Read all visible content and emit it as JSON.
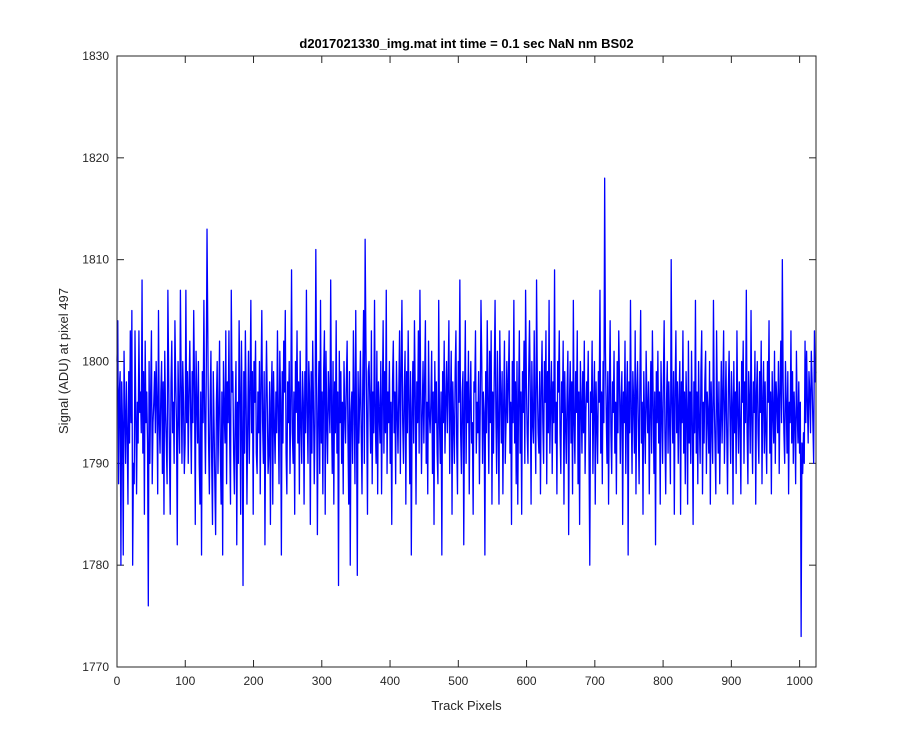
{
  "chart_data": {
    "type": "line",
    "title": "d2017021330_img.mat int time = 0.1 sec  NaN nm BS02",
    "xlabel": "Track Pixels",
    "ylabel": "Signal (ADU) at pixel 497",
    "xlim": [
      0,
      1024
    ],
    "ylim": [
      1770,
      1830
    ],
    "xticks": [
      0,
      100,
      200,
      300,
      400,
      500,
      600,
      700,
      800,
      900,
      1000
    ],
    "yticks": [
      1770,
      1780,
      1790,
      1800,
      1810,
      1820,
      1830
    ],
    "grid": false,
    "legend": "none",
    "series": [
      {
        "color": "#0000ff",
        "values": [
          1800,
          1804,
          1788,
          1797,
          1799,
          1780,
          1798,
          1794,
          1781,
          1801,
          1795,
          1790,
          1798,
          1793,
          1786,
          1799,
          1792,
          1803,
          1794,
          1805,
          1780,
          1790,
          1788,
          1803,
          1795,
          1787,
          1796,
          1792,
          1803,
          1795,
          1797,
          1793,
          1808,
          1791,
          1799,
          1785,
          1802,
          1794,
          1797,
          1792,
          1776,
          1800,
          1790,
          1797,
          1803,
          1788,
          1794,
          1796,
          1799,
          1793,
          1800,
          1796,
          1787,
          1805,
          1794,
          1791,
          1797,
          1800,
          1789,
          1798,
          1785,
          1801,
          1795,
          1792,
          1788,
          1807,
          1799,
          1791,
          1785,
          1798,
          1802,
          1793,
          1796,
          1790,
          1804,
          1798,
          1794,
          1782,
          1800,
          1795,
          1791,
          1807,
          1798,
          1790,
          1800,
          1796,
          1789,
          1792,
          1807,
          1794,
          1799,
          1790,
          1797,
          1802,
          1795,
          1789,
          1799,
          1794,
          1805,
          1798,
          1784,
          1801,
          1796,
          1792,
          1800,
          1790,
          1786,
          1797,
          1781,
          1799,
          1794,
          1806,
          1795,
          1789,
          1798,
          1813,
          1803,
          1792,
          1787,
          1796,
          1801,
          1790,
          1784,
          1799,
          1794,
          1788,
          1783,
          1796,
          1800,
          1789,
          1795,
          1802,
          1791,
          1786,
          1797,
          1781,
          1800,
          1795,
          1792,
          1803,
          1788,
          1798,
          1794,
          1803,
          1792,
          1786,
          1807,
          1797,
          1799,
          1791,
          1787,
          1795,
          1800,
          1782,
          1796,
          1790,
          1804,
          1797,
          1785,
          1802,
          1794,
          1778,
          1799,
          1791,
          1803,
          1796,
          1786,
          1794,
          1801,
          1790,
          1797,
          1806,
          1793,
          1799,
          1785,
          1800,
          1796,
          1802,
          1791,
          1789,
          1797,
          1793,
          1800,
          1787,
          1798,
          1805,
          1794,
          1790,
          1799,
          1782,
          1795,
          1802,
          1796,
          1789,
          1791,
          1798,
          1784,
          1796,
          1800,
          1786,
          1799,
          1794,
          1790,
          1797,
          1793,
          1803,
          1795,
          1788,
          1801,
          1796,
          1781,
          1799,
          1792,
          1802,
          1797,
          1805,
          1791,
          1787,
          1798,
          1794,
          1800,
          1789,
          1796,
          1809,
          1793,
          1790,
          1797,
          1785,
          1800,
          1795,
          1803,
          1792,
          1798,
          1787,
          1801,
          1794,
          1790,
          1799,
          1796,
          1786,
          1799,
          1793,
          1807,
          1795,
          1790,
          1800,
          1797,
          1784,
          1799,
          1791,
          1802,
          1796,
          1788,
          1794,
          1811,
          1798,
          1783,
          1795,
          1800,
          1789,
          1806,
          1792,
          1797,
          1787,
          1799,
          1803,
          1785,
          1801,
          1794,
          1790,
          1799,
          1796,
          1793,
          1808,
          1795,
          1789,
          1800,
          1786,
          1798,
          1793,
          1804,
          1791,
          1797,
          1778,
          1801,
          1794,
          1799,
          1790,
          1796,
          1787,
          1800,
          1795,
          1792,
          1798,
          1802,
          1793,
          1786,
          1799,
          1780,
          1795,
          1797,
          1790,
          1803,
          1796,
          1788,
          1805,
          1794,
          1779,
          1799,
          1792,
          1796,
          1801,
          1793,
          1787,
          1798,
          1805,
          1790,
          1812,
          1802,
          1795,
          1785,
          1799,
          1800,
          1796,
          1791,
          1803,
          1788,
          1797,
          1793,
          1806,
          1794,
          1790,
          1801,
          1787,
          1798,
          1795,
          1792,
          1800,
          1787,
          1796,
          1804,
          1791,
          1799,
          1793,
          1807,
          1789,
          1797,
          1794,
          1800,
          1790,
          1796,
          1784,
          1798,
          1802,
          1793,
          1797,
          1788,
          1800,
          1795,
          1791,
          1797,
          1803,
          1789,
          1799,
          1806,
          1794,
          1790,
          1797,
          1801,
          1786,
          1799,
          1793,
          1803,
          1796,
          1788,
          1799,
          1781,
          1795,
          1800,
          1792,
          1804,
          1797,
          1786,
          1798,
          1794,
          1803,
          1791,
          1807,
          1797,
          1789,
          1795,
          1800,
          1792,
          1798,
          1804,
          1790,
          1796,
          1787,
          1802,
          1795,
          1793,
          1796,
          1801,
          1789,
          1797,
          1784,
          1800,
          1794,
          1798,
          1791,
          1788,
          1806,
          1794,
          1790,
          1797,
          1781,
          1799,
          1794,
          1802,
          1791,
          1796,
          1800,
          1793,
          1798,
          1804,
          1789,
          1796,
          1801,
          1785,
          1798,
          1794,
          1790,
          1799,
          1803,
          1792,
          1787,
          1800,
          1796,
          1808,
          1793,
          1789,
          1797,
          1799,
          1782,
          1796,
          1804,
          1790,
          1798,
          1794,
          1801,
          1787,
          1796,
          1800,
          1792,
          1794,
          1785,
          1798,
          1797,
          1803,
          1791,
          1796,
          1793,
          1799,
          1788,
          1795,
          1806,
          1800,
          1790,
          1797,
          1795,
          1781,
          1799,
          1793,
          1804,
          1796,
          1789,
          1801,
          1794,
          1803,
          1786,
          1797,
          1791,
          1799,
          1806,
          1795,
          1789,
          1801,
          1794,
          1786,
          1803,
          1797,
          1792,
          1799,
          1787,
          1796,
          1802,
          1790,
          1794,
          1800,
          1794,
          1798,
          1803,
          1791,
          1796,
          1784,
          1800,
          1794,
          1806,
          1792,
          1798,
          1788,
          1800,
          1786,
          1796,
          1803,
          1791,
          1797,
          1785,
          1799,
          1795,
          1802,
          1790,
          1807,
          1798,
          1793,
          1790,
          1799,
          1804,
          1797,
          1786,
          1800,
          1794,
          1792,
          1803,
          1795,
          1789,
          1808,
          1798,
          1793,
          1791,
          1799,
          1787,
          1797,
          1802,
          1794,
          1790,
          1800,
          1796,
          1803,
          1788,
          1799,
          1793,
          1806,
          1791,
          1796,
          1800,
          1789,
          1798,
          1794,
          1809,
          1792,
          1796,
          1787,
          1800,
          1797,
          1803,
          1793,
          1789,
          1798,
          1795,
          1802,
          1786,
          1799,
          1794,
          1790,
          1797,
          1801,
          1783,
          1796,
          1800,
          1792,
          1798,
          1787,
          1806,
          1794,
          1790,
          1799,
          1795,
          1803,
          1788,
          1797,
          1784,
          1800,
          1796,
          1791,
          1799,
          1793,
          1802,
          1789,
          1795,
          1798,
          1796,
          1801,
          1791,
          1780,
          1797,
          1795,
          1802,
          1789,
          1796,
          1800,
          1786,
          1798,
          1794,
          1790,
          1799,
          1796,
          1807,
          1791,
          1797,
          1788,
          1800,
          1794,
          1818,
          1801,
          1795,
          1790,
          1799,
          1786,
          1797,
          1804,
          1793,
          1789,
          1798,
          1795,
          1801,
          1791,
          1796,
          1787,
          1800,
          1793,
          1803,
          1798,
          1790,
          1796,
          1799,
          1784,
          1797,
          1794,
          1802,
          1789,
          1796,
          1800,
          1781,
          1798,
          1793,
          1806,
          1795,
          1789,
          1799,
          1796,
          1791,
          1803,
          1787,
          1797,
          1800,
          1794,
          1788,
          1798,
          1805,
          1792,
          1796,
          1785,
          1799,
          1794,
          1790,
          1801,
          1796,
          1793,
          1798,
          1787,
          1795,
          1800,
          1791,
          1803,
          1796,
          1789,
          1797,
          1782,
          1799,
          1794,
          1801,
          1792,
          1797,
          1786,
          1800,
          1795,
          1790,
          1798,
          1804,
          1793,
          1787,
          1796,
          1800,
          1791,
          1798,
          1794,
          1788,
          1810,
          1796,
          1792,
          1799,
          1785,
          1797,
          1803,
          1793,
          1798,
          1790,
          1796,
          1800,
          1785,
          1798,
          1794,
          1803,
          1791,
          1797,
          1788,
          1799,
          1795,
          1786,
          1802,
          1792,
          1797,
          1790,
          1801,
          1794,
          1784,
          1798,
          1793,
          1806,
          1791,
          1797,
          1788,
          1800,
          1794,
          1790,
          1799,
          1803,
          1787,
          1796,
          1792,
          1798,
          1801,
          1789,
          1797,
          1795,
          1791,
          1800,
          1786,
          1798,
          1794,
          1790,
          1806,
          1796,
          1792,
          1787,
          1803,
          1796,
          1791,
          1798,
          1788,
          1794,
          1800,
          1792,
          1797,
          1803,
          1790,
          1795,
          1800,
          1793,
          1787,
          1797,
          1801,
          1795,
          1790,
          1799,
          1796,
          1786,
          1800,
          1793,
          1797,
          1789,
          1803,
          1795,
          1791,
          1798,
          1794,
          1787,
          1800,
          1796,
          1802,
          1790,
          1798,
          1794,
          1807,
          1793,
          1788,
          1799,
          1796,
          1791,
          1805,
          1794,
          1789,
          1798,
          1795,
          1801,
          1786,
          1797,
          1800,
          1793,
          1790,
          1799,
          1795,
          1802,
          1788,
          1796,
          1800,
          1791,
          1798,
          1793,
          1789,
          1800,
          1796,
          1804,
          1791,
          1797,
          1787,
          1799,
          1795,
          1792,
          1801,
          1790,
          1798,
          1796,
          1793,
          1800,
          1789,
          1797,
          1802,
          1794,
          1810,
          1798,
          1793,
          1790,
          1800,
          1796,
          1791,
          1799,
          1787,
          1796,
          1794,
          1803,
          1792,
          1799,
          1790,
          1797,
          1794,
          1788,
          1801,
          1795,
          1792,
          1798,
          1791,
          1796,
          1773,
          1792,
          1789,
          1793,
          1790,
          1802,
          1794,
          1801,
          1796,
          1792,
          1799,
          1797,
          1793,
          1801,
          1798,
          1794,
          1790,
          1803,
          1798,
          1799
        ]
      }
    ]
  }
}
